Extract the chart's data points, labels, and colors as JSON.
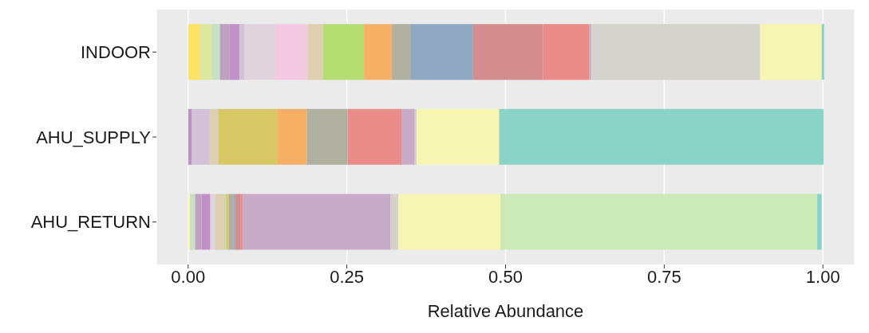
{
  "chart_data": {
    "type": "bar",
    "orientation": "horizontal",
    "stacked": true,
    "xlabel": "Relative Abundance",
    "categories": [
      "INDOOR",
      "AHU_SUPPLY",
      "AHU_RETURN"
    ],
    "xlim": [
      -0.05,
      1.05
    ],
    "xticks": [
      {
        "value": 0,
        "label": "0.00"
      },
      {
        "value": 0.25,
        "label": "0.25"
      },
      {
        "value": 0.5,
        "label": "0.50"
      },
      {
        "value": 0.75,
        "label": "0.75"
      },
      {
        "value": 1,
        "label": "1.00"
      }
    ],
    "grid": "x",
    "legend": false,
    "series": [
      {
        "values": [
          0.018,
          0.006,
          0.003
        ],
        "colors": [
          "#fde265",
          "#c091c6",
          "#f6f6b2"
        ]
      },
      {
        "values": [
          0.019,
          0.028,
          0.008
        ],
        "colors": [
          "#dde89d",
          "#d3c1d8",
          "#c8e0c4"
        ]
      },
      {
        "values": [
          0.013,
          0.014,
          0.01
        ],
        "colors": [
          "#c8e0c4",
          "#dcd0b0",
          "#c0a0c0"
        ]
      },
      {
        "values": [
          0.015,
          0.092,
          0.014
        ],
        "colors": [
          "#c0a0c0",
          "#d5c865",
          "#c091c6"
        ]
      },
      {
        "values": [
          0.016,
          0.047,
          0.008
        ],
        "colors": [
          "#c091c6",
          "#f5b065",
          "#e1d3dc"
        ]
      },
      {
        "values": [
          0.008,
          0.064,
          0.016
        ],
        "colors": [
          "#d3c1d8",
          "#b0b0a0",
          "#dcd0b0"
        ]
      },
      {
        "values": [
          0.048,
          0.085,
          0.003
        ],
        "colors": [
          "#e1d3dc",
          "#ea8c89",
          "#b6dd72"
        ]
      },
      {
        "values": [
          0.051,
          0.021,
          0.002
        ],
        "colors": [
          "#f4c9e2",
          "#c8abc6",
          "#f5b065"
        ]
      },
      {
        "values": [
          0.024,
          0.003,
          0.007
        ],
        "colors": [
          "#dcd0b0",
          "#d3d2cc",
          "#b0b0a0"
        ]
      },
      {
        "values": [
          0.065,
          0.13,
          0.003
        ],
        "colors": [
          "#b6dd72",
          "#f6f6b2",
          "#91a8c3"
        ]
      },
      {
        "values": [
          0.044,
          0.511,
          0.009
        ],
        "colors": [
          "#f5b065",
          "#8cd3c7",
          "#d58c8e"
        ]
      },
      {
        "values": [
          0.029,
          null,
          0.003
        ],
        "colors": [
          "#b0b0a0",
          null,
          "#ea8c89"
        ]
      },
      {
        "values": [
          0.099,
          null,
          0.233
        ],
        "colors": [
          "#91a8c3",
          null,
          "#c8abc6"
        ]
      },
      {
        "values": [
          0.11,
          null,
          0.012
        ],
        "colors": [
          "#d58c8e",
          null,
          "#d3d2cc"
        ]
      },
      {
        "values": [
          0.073,
          null,
          0.161
        ],
        "colors": [
          "#ea8c89",
          null,
          "#f6f6b2"
        ]
      },
      {
        "values": [
          0.003,
          null,
          0.499
        ],
        "colors": [
          "#c8abc6",
          null,
          "#cbeab8"
        ]
      },
      {
        "values": [
          0.266,
          null,
          0.007
        ],
        "colors": [
          "#d3d2cc",
          null,
          "#8cd3c7"
        ]
      },
      {
        "values": [
          0.097,
          null,
          null
        ],
        "colors": [
          "#f6f6b2",
          null,
          null
        ]
      },
      {
        "values": [
          0.004,
          null,
          null
        ],
        "colors": [
          "#8cd3c7",
          null,
          null
        ]
      }
    ]
  }
}
